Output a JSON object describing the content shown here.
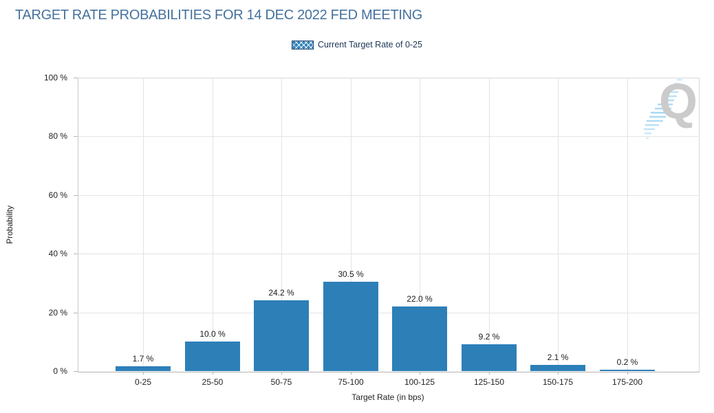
{
  "header": {
    "title": "TARGET RATE PROBABILITIES FOR 14 DEC 2022 FED MEETING"
  },
  "legend": {
    "label": "Current Target Rate of 0-25"
  },
  "watermark": {
    "letter": "Q"
  },
  "colors": {
    "bar": "#2D7FB8",
    "grid": "#E3E3E3",
    "axisline": "#B3B3B3",
    "axistext": "#222222",
    "titlecolor": "#44719E",
    "legendtext": "#1B3556",
    "watermarkgray": "#CBCBCB",
    "watermarkblue": "#A6D9F4"
  },
  "chart_data": {
    "type": "bar",
    "title": "TARGET RATE PROBABILITIES FOR 14 DEC 2022 FED MEETING",
    "categories": [
      "0-25",
      "25-50",
      "50-75",
      "75-100",
      "100-125",
      "125-150",
      "150-175",
      "175-200"
    ],
    "values": [
      1.7,
      10.0,
      24.2,
      30.5,
      22.0,
      9.2,
      2.1,
      0.2
    ],
    "value_labels": [
      "1.7 %",
      "10.0 %",
      "24.2 %",
      "30.5 %",
      "22.0 %",
      "9.2 %",
      "2.1 %",
      "0.2 %"
    ],
    "xlabel": "Target Rate (in bps)",
    "ylabel": "Probability",
    "ylim": [
      0,
      100
    ],
    "yticks": [
      "0 %",
      "20 %",
      "40 %",
      "60 %",
      "80 %",
      "100 %"
    ],
    "grid": true,
    "legend_position": "top-center",
    "legend_entries": [
      {
        "label": "Current Target Rate of 0-25",
        "style": "hatched",
        "applies_to": "0-25"
      }
    ],
    "highlighted_category": "0-25",
    "highlight_style": "white cross-hatch over blue"
  }
}
